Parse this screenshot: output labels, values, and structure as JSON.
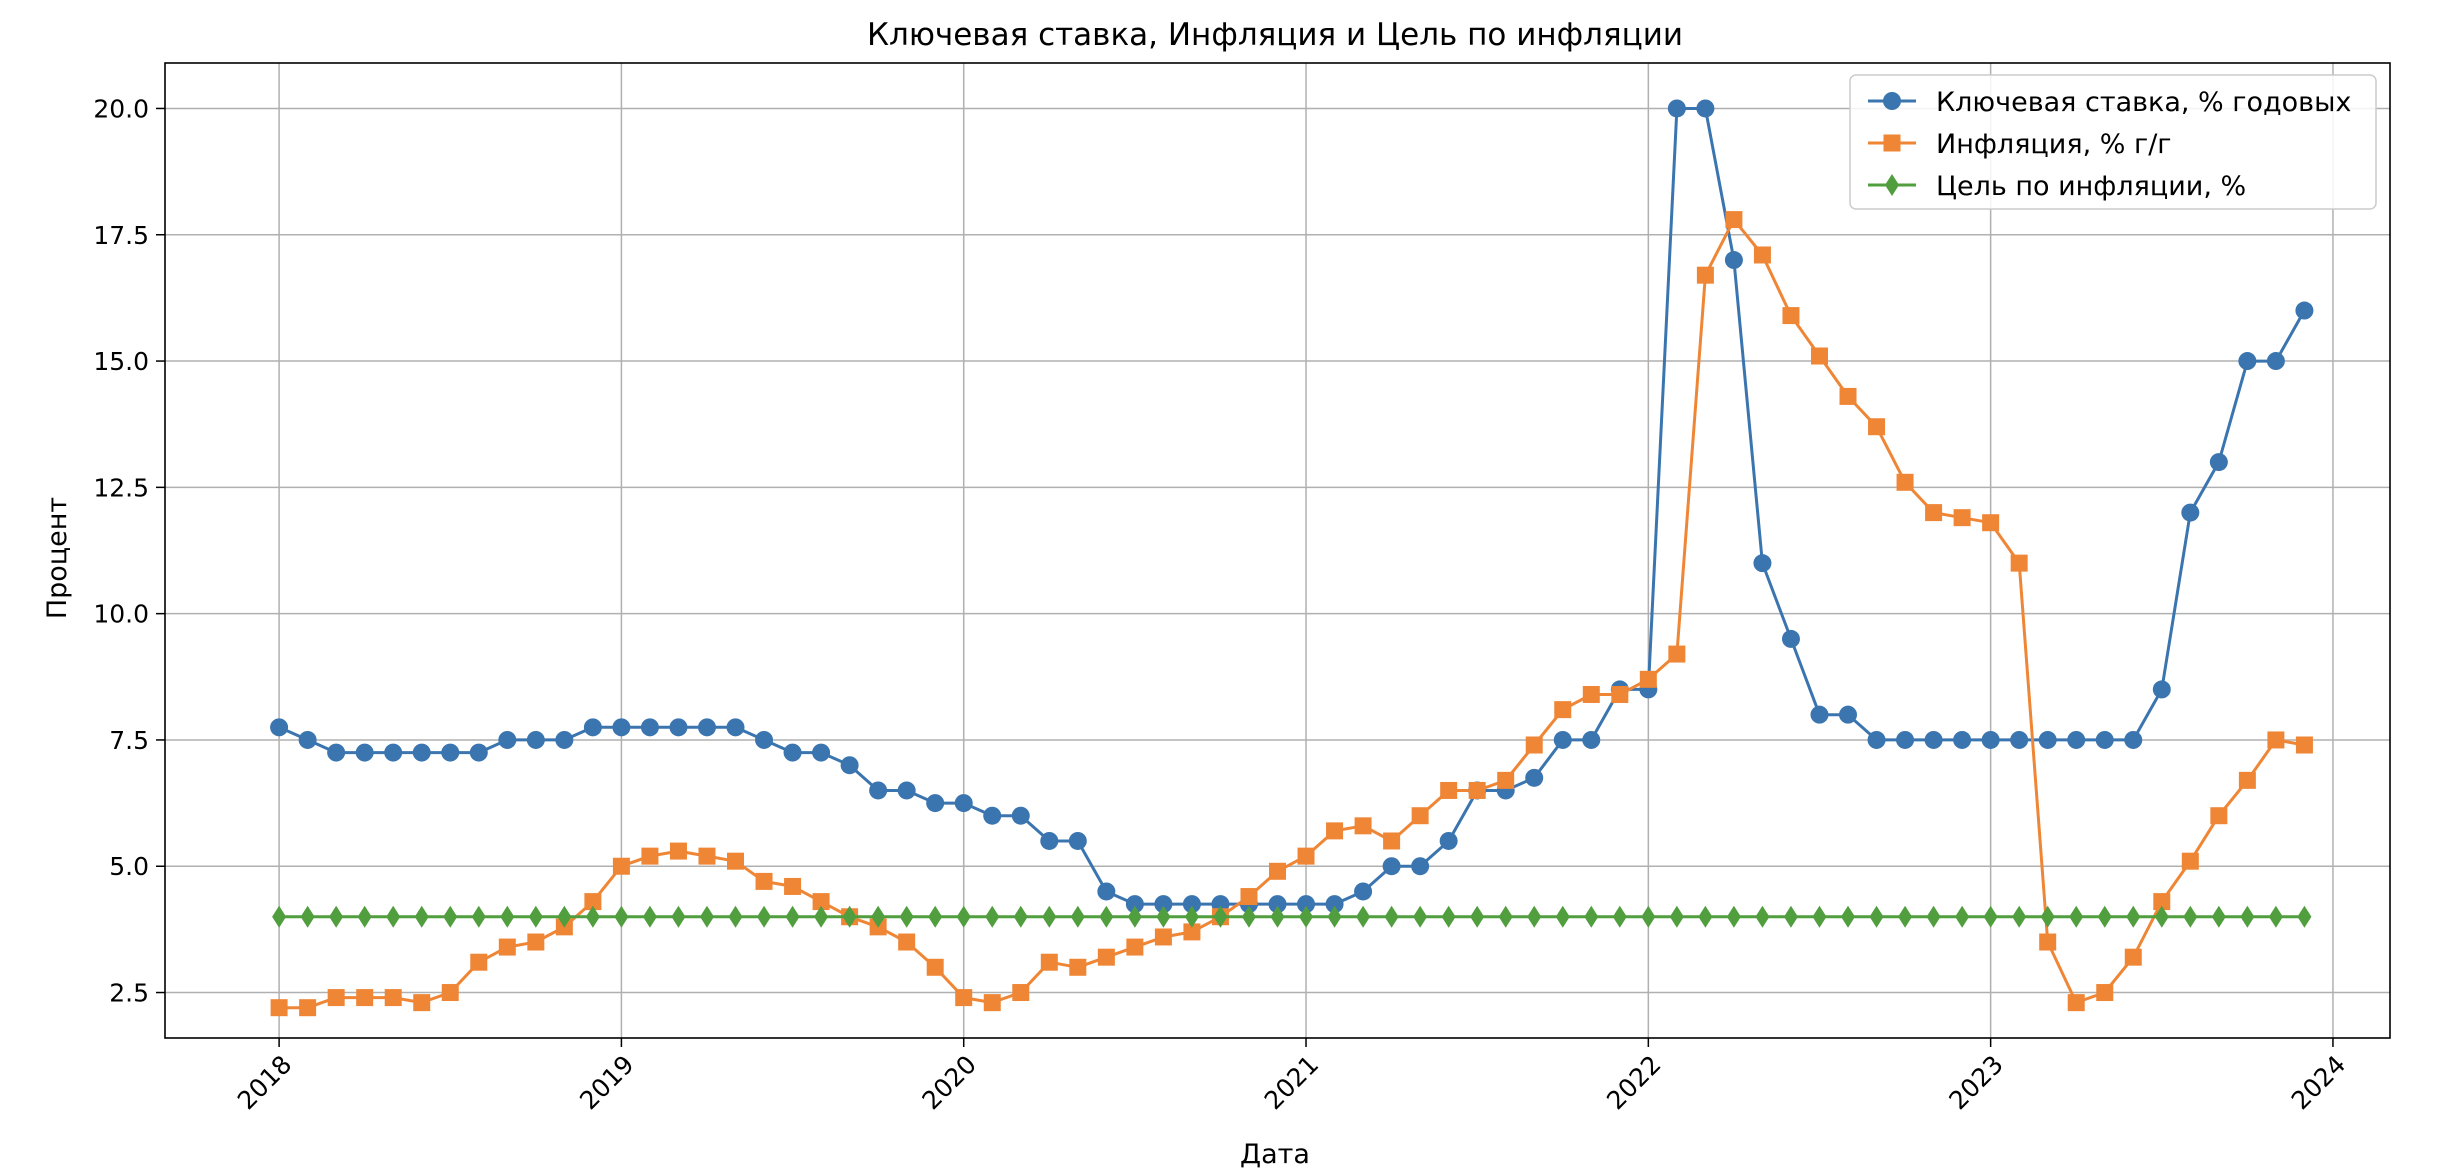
{
  "chart_data": {
    "type": "line",
    "title": "Ключевая ставка, Инфляция и Цель по инфляции",
    "xlabel": "Дата",
    "ylabel": "Процент",
    "x_ticks": [
      "2018",
      "2019",
      "2020",
      "2021",
      "2022",
      "2023",
      "2024"
    ],
    "y_ticks": [
      "2.5",
      "5.0",
      "7.5",
      "10.0",
      "12.5",
      "15.0",
      "17.5",
      "20.0"
    ],
    "xlim": [
      "2017-09",
      "2024-03"
    ],
    "ylim": [
      1.6,
      20.9
    ],
    "grid": true,
    "legend_position": "top-right",
    "x": [
      "2018-01",
      "2018-02",
      "2018-03",
      "2018-04",
      "2018-05",
      "2018-06",
      "2018-07",
      "2018-08",
      "2018-09",
      "2018-10",
      "2018-11",
      "2018-12",
      "2019-01",
      "2019-02",
      "2019-03",
      "2019-04",
      "2019-05",
      "2019-06",
      "2019-07",
      "2019-08",
      "2019-09",
      "2019-10",
      "2019-11",
      "2019-12",
      "2020-01",
      "2020-02",
      "2020-03",
      "2020-04",
      "2020-05",
      "2020-06",
      "2020-07",
      "2020-08",
      "2020-09",
      "2020-10",
      "2020-11",
      "2020-12",
      "2021-01",
      "2021-02",
      "2021-03",
      "2021-04",
      "2021-05",
      "2021-06",
      "2021-07",
      "2021-08",
      "2021-09",
      "2021-10",
      "2021-11",
      "2021-12",
      "2022-01",
      "2022-02",
      "2022-03",
      "2022-04",
      "2022-05",
      "2022-06",
      "2022-07",
      "2022-08",
      "2022-09",
      "2022-10",
      "2022-11",
      "2022-12",
      "2023-01",
      "2023-02",
      "2023-03",
      "2023-04",
      "2023-05",
      "2023-06",
      "2023-07",
      "2023-08",
      "2023-09",
      "2023-10",
      "2023-11",
      "2023-12"
    ],
    "series": [
      {
        "name": "Ключевая ставка, % годовых",
        "color": "#3b75af",
        "marker": "circle",
        "values": [
          7.75,
          7.5,
          7.25,
          7.25,
          7.25,
          7.25,
          7.25,
          7.25,
          7.5,
          7.5,
          7.5,
          7.75,
          7.75,
          7.75,
          7.75,
          7.75,
          7.75,
          7.5,
          7.25,
          7.25,
          7.0,
          6.5,
          6.5,
          6.25,
          6.25,
          6.0,
          6.0,
          5.5,
          5.5,
          4.5,
          4.25,
          4.25,
          4.25,
          4.25,
          4.25,
          4.25,
          4.25,
          4.25,
          4.5,
          5.0,
          5.0,
          5.5,
          6.5,
          6.5,
          6.75,
          7.5,
          7.5,
          8.5,
          8.5,
          20.0,
          20.0,
          17.0,
          11.0,
          9.5,
          8.0,
          8.0,
          7.5,
          7.5,
          7.5,
          7.5,
          7.5,
          7.5,
          7.5,
          7.5,
          7.5,
          7.5,
          8.5,
          12.0,
          13.0,
          15.0,
          15.0,
          16.0
        ]
      },
      {
        "name": "Инфляция, % г/г",
        "color": "#ef8636",
        "marker": "square",
        "values": [
          2.2,
          2.2,
          2.4,
          2.4,
          2.4,
          2.3,
          2.5,
          3.1,
          3.4,
          3.5,
          3.8,
          4.3,
          5.0,
          5.2,
          5.3,
          5.2,
          5.1,
          4.7,
          4.6,
          4.3,
          4.0,
          3.8,
          3.5,
          3.0,
          2.4,
          2.3,
          2.5,
          3.1,
          3.0,
          3.2,
          3.4,
          3.6,
          3.7,
          4.0,
          4.4,
          4.9,
          5.2,
          5.7,
          5.8,
          5.5,
          6.0,
          6.5,
          6.5,
          6.7,
          7.4,
          8.1,
          8.4,
          8.4,
          8.7,
          9.2,
          16.7,
          17.8,
          17.1,
          15.9,
          15.1,
          14.3,
          13.7,
          12.6,
          12.0,
          11.9,
          11.8,
          11.0,
          3.5,
          2.3,
          2.5,
          3.2,
          4.3,
          5.1,
          6.0,
          6.7,
          7.5,
          7.4
        ]
      },
      {
        "name": "Цель по инфляции, %",
        "color": "#519e3e",
        "marker": "diamond",
        "values": [
          4,
          4,
          4,
          4,
          4,
          4,
          4,
          4,
          4,
          4,
          4,
          4,
          4,
          4,
          4,
          4,
          4,
          4,
          4,
          4,
          4,
          4,
          4,
          4,
          4,
          4,
          4,
          4,
          4,
          4,
          4,
          4,
          4,
          4,
          4,
          4,
          4,
          4,
          4,
          4,
          4,
          4,
          4,
          4,
          4,
          4,
          4,
          4,
          4,
          4,
          4,
          4,
          4,
          4,
          4,
          4,
          4,
          4,
          4,
          4,
          4,
          4,
          4,
          4,
          4,
          4,
          4,
          4,
          4,
          4,
          4,
          4
        ]
      }
    ]
  }
}
